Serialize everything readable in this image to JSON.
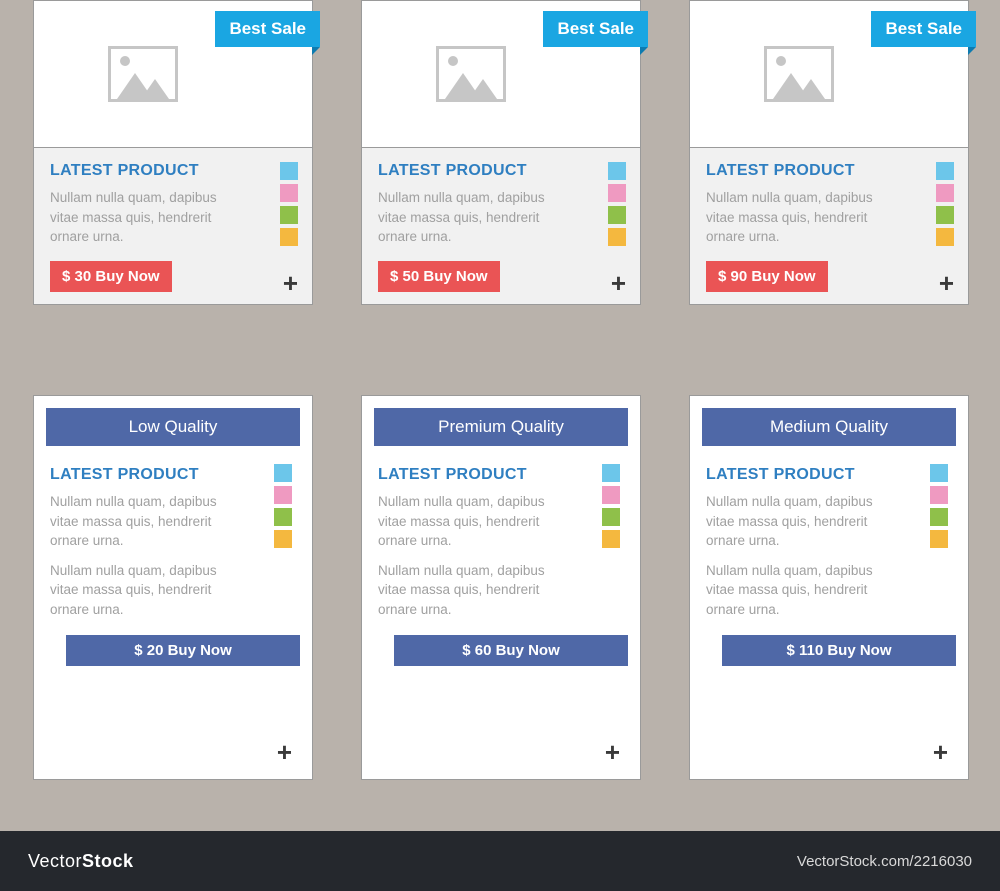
{
  "colors": {
    "page_bg": "#b9b2ab",
    "ribbon": "#1aa6e2",
    "title": "#2f7fc1",
    "desc": "#a0a0a0",
    "buy_red": "#ea5455",
    "buy_blue": "#4f68a7",
    "quality_bar": "#4f68a7",
    "plus": "#3a3a3a",
    "footer_bg": "#25282d"
  },
  "swatches": [
    "#6cc6ea",
    "#ef9ac1",
    "#8fc04a",
    "#f4b83f"
  ],
  "shared": {
    "title": "LATEST PRODUCT",
    "desc": "Nullam nulla quam, dapibus vitae massa quis, hendrerit ornare urna.",
    "plus": "+"
  },
  "top_cards": [
    {
      "ribbon": "Best Sale",
      "price": "$ 30 Buy Now"
    },
    {
      "ribbon": "Best Sale",
      "price": "$ 50 Buy Now"
    },
    {
      "ribbon": "Best Sale",
      "price": "$ 90 Buy Now"
    }
  ],
  "bottom_cards": [
    {
      "quality": "Low Quality",
      "price": "$ 20 Buy Now"
    },
    {
      "quality": "Premium Quality",
      "price": "$ 60 Buy Now"
    },
    {
      "quality": "Medium Quality",
      "price": "$ 110 Buy Now"
    }
  ],
  "footer": {
    "brand_light": "Vector",
    "brand_bold": "Stock",
    "url": "VectorStock.com/2216030"
  }
}
